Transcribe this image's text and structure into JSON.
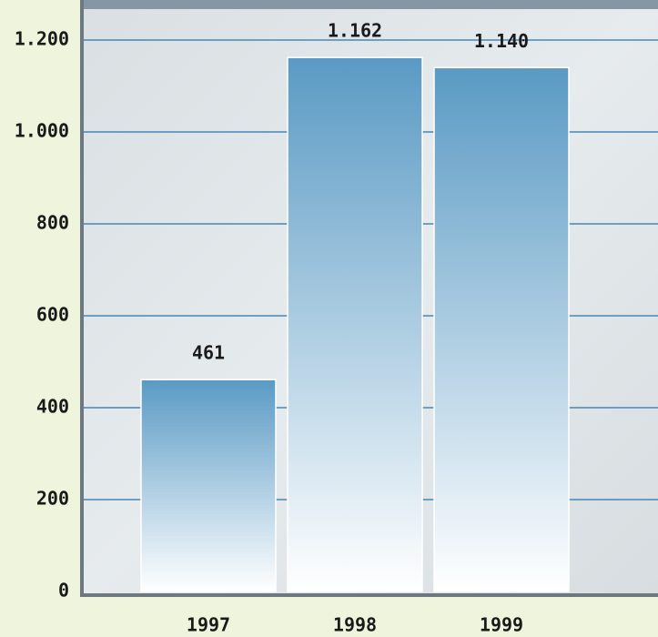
{
  "chart_data": {
    "type": "bar",
    "categories": [
      "1997",
      "1998",
      "1999"
    ],
    "values": [
      461,
      1162,
      1140
    ],
    "value_labels": [
      "461",
      "1.162",
      "1.140"
    ],
    "color": "#5a9ac4",
    "ylim": [
      0,
      1200
    ],
    "yticks": [
      0,
      200,
      400,
      600,
      800,
      {
        "value": 1000,
        "label": "1.000"
      },
      {
        "value": 1200,
        "label": "1.200"
      }
    ],
    "grid": true
  }
}
